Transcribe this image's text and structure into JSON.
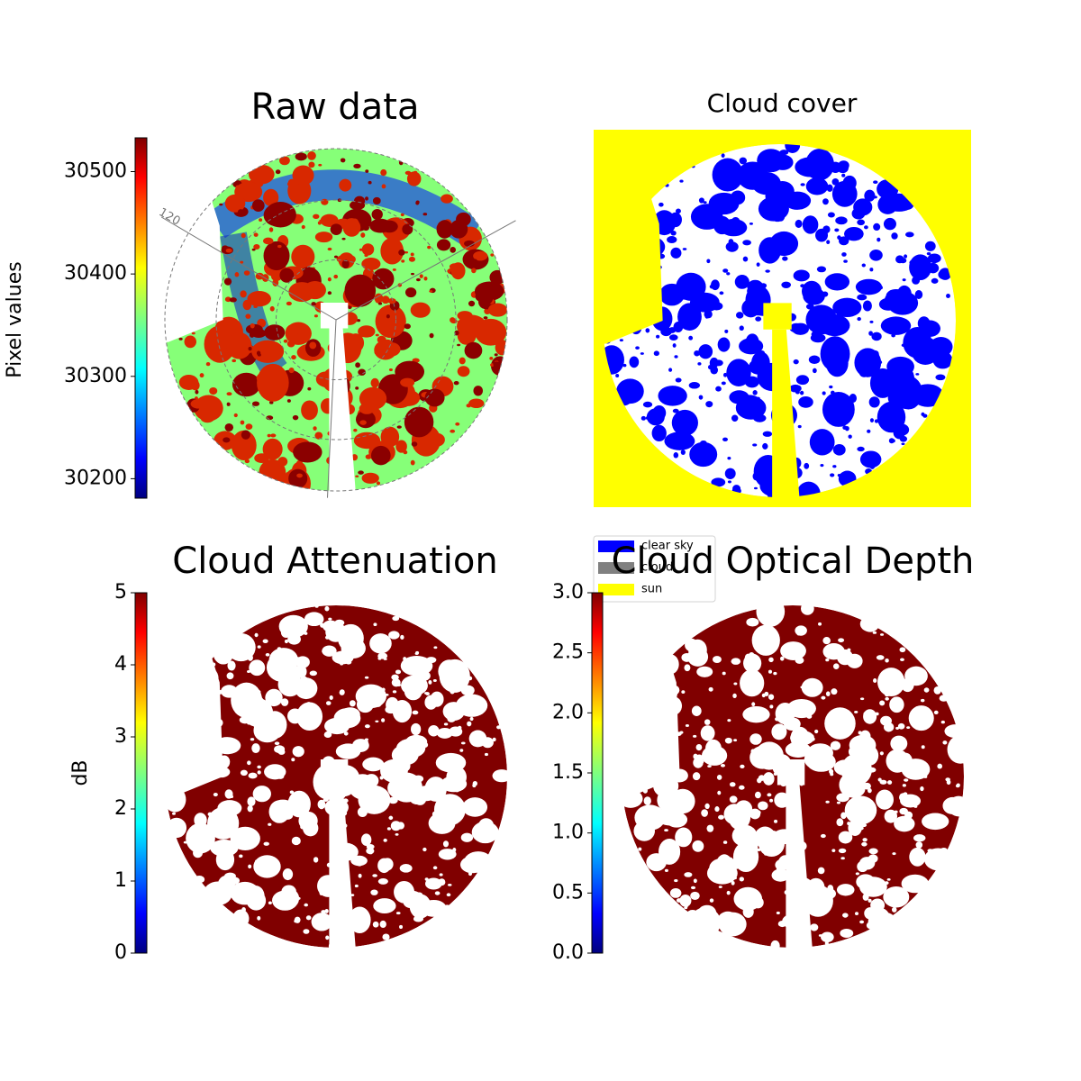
{
  "chart_data": [
    {
      "type": "image",
      "title": "Raw data",
      "colorbar_label": "Pixel values",
      "ylim": [
        30181,
        30533
      ],
      "yticks": [
        30200,
        30300,
        30400,
        30500
      ],
      "colormap": "jet",
      "annotations": [
        "120"
      ]
    },
    {
      "type": "image",
      "title": "Cloud cover",
      "legend": [
        {
          "name": "clear sky",
          "color": "#0000ff"
        },
        {
          "name": "cloud",
          "color": "#808080"
        },
        {
          "name": "sun",
          "color": "#ffff00"
        }
      ]
    },
    {
      "type": "image",
      "title": "Cloud Attenuation",
      "colorbar_label": "dB",
      "ylim": [
        0,
        5
      ],
      "yticks": [
        0,
        1,
        2,
        3,
        4,
        5
      ],
      "colormap": "jet"
    },
    {
      "type": "image",
      "title": "Cloud Optical Depth",
      "ylim": [
        0,
        3
      ],
      "yticks": [
        {
          "value": 0,
          "label": "0.0"
        },
        {
          "value": 0.5,
          "label": "0.5"
        },
        {
          "value": 1,
          "label": "1.0"
        },
        {
          "value": 1.5,
          "label": "1.5"
        },
        {
          "value": 2,
          "label": "2.0"
        },
        {
          "value": 2.5,
          "label": "2.5"
        },
        {
          "value": 3,
          "label": "3.0"
        }
      ],
      "colormap": "jet"
    }
  ]
}
